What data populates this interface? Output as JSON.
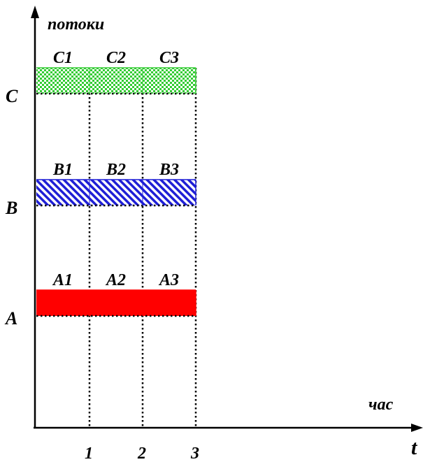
{
  "axis": {
    "y_label": "потоки",
    "x_unit_label": "час",
    "x_symbol": "t",
    "ticks": [
      "1",
      "2",
      "3"
    ]
  },
  "streams": [
    {
      "name": "C",
      "fill": "#33cc33",
      "pattern": "checker",
      "segments": [
        "C1",
        "C2",
        "C3"
      ]
    },
    {
      "name": "B",
      "fill": "#1f1fd6",
      "pattern": "diagonal-hatch",
      "segments": [
        "B1",
        "B2",
        "B3"
      ]
    },
    {
      "name": "A",
      "fill": "#ff0000",
      "pattern": "solid",
      "segments": [
        "A1",
        "A2",
        "A3"
      ]
    }
  ]
}
